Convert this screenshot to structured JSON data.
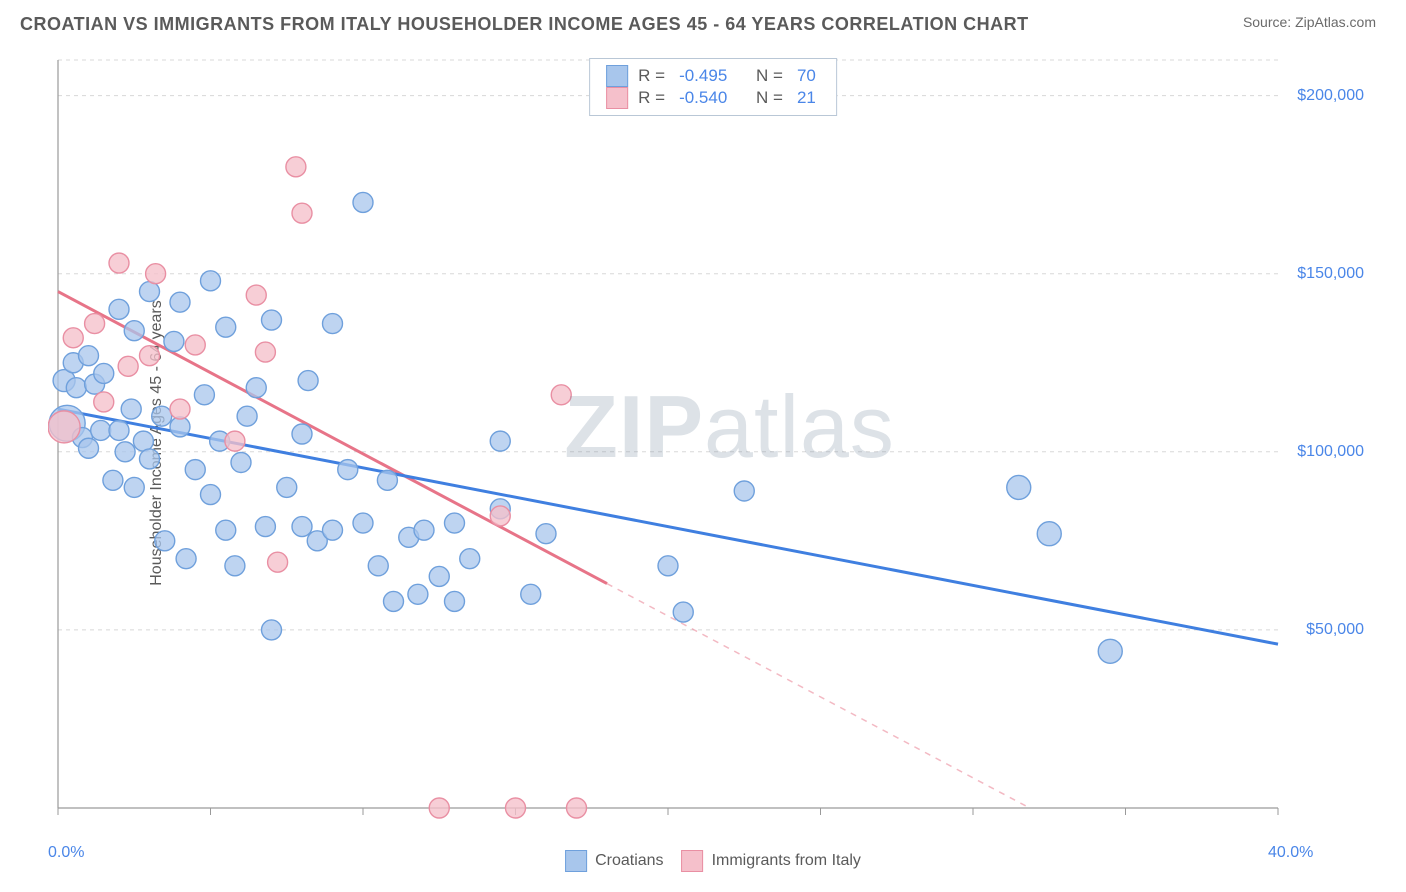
{
  "title": "CROATIAN VS IMMIGRANTS FROM ITALY HOUSEHOLDER INCOME AGES 45 - 64 YEARS CORRELATION CHART",
  "source": "Source: ZipAtlas.com",
  "watermark_bold": "ZIP",
  "watermark_light": "atlas",
  "ylabel": "Householder Income Ages 45 - 64 years",
  "chart": {
    "type": "scatter",
    "background_color": "#ffffff",
    "grid_color": "#d8d8d8",
    "grid_dash": "4,4",
    "axis_color": "#9a9a9a",
    "xlim": [
      0,
      40
    ],
    "ylim": [
      0,
      210000
    ],
    "x_ticks_minor": [
      0,
      5,
      10,
      15,
      20,
      25,
      30,
      35,
      40
    ],
    "x_tick_labels": [
      {
        "v": 0,
        "label": "0.0%"
      },
      {
        "v": 40,
        "label": "40.0%"
      }
    ],
    "y_gridlines": [
      50000,
      100000,
      150000,
      200000,
      210000
    ],
    "y_tick_labels": [
      {
        "v": 50000,
        "label": "$50,000"
      },
      {
        "v": 100000,
        "label": "$100,000"
      },
      {
        "v": 150000,
        "label": "$150,000"
      },
      {
        "v": 200000,
        "label": "$200,000"
      }
    ],
    "plot_top_pad": 12
  },
  "series": {
    "croatians": {
      "label": "Croatians",
      "fill_color": "#a8c6ec",
      "stroke_color": "#6fa0dc",
      "line_color": "#3f7fe0",
      "marker_radius": 10,
      "marker_opacity": 0.75,
      "regression": {
        "x1": 0,
        "y1": 112000,
        "x2": 40,
        "y2": 46000,
        "dash_after_x": 40
      },
      "points": [
        {
          "x": 0.2,
          "y": 120000,
          "r": 11
        },
        {
          "x": 0.3,
          "y": 108000,
          "r": 18
        },
        {
          "x": 0.5,
          "y": 125000
        },
        {
          "x": 0.6,
          "y": 118000
        },
        {
          "x": 0.8,
          "y": 104000
        },
        {
          "x": 1.0,
          "y": 127000
        },
        {
          "x": 1.0,
          "y": 101000
        },
        {
          "x": 1.2,
          "y": 119000
        },
        {
          "x": 1.4,
          "y": 106000
        },
        {
          "x": 1.5,
          "y": 122000
        },
        {
          "x": 1.8,
          "y": 92000
        },
        {
          "x": 2.0,
          "y": 140000
        },
        {
          "x": 2.0,
          "y": 106000
        },
        {
          "x": 2.2,
          "y": 100000
        },
        {
          "x": 2.4,
          "y": 112000
        },
        {
          "x": 2.5,
          "y": 134000
        },
        {
          "x": 2.5,
          "y": 90000
        },
        {
          "x": 2.8,
          "y": 103000
        },
        {
          "x": 3.0,
          "y": 145000
        },
        {
          "x": 3.0,
          "y": 98000
        },
        {
          "x": 3.4,
          "y": 110000
        },
        {
          "x": 3.5,
          "y": 75000
        },
        {
          "x": 3.8,
          "y": 131000
        },
        {
          "x": 4.0,
          "y": 142000
        },
        {
          "x": 4.0,
          "y": 107000
        },
        {
          "x": 4.2,
          "y": 70000
        },
        {
          "x": 4.5,
          "y": 95000
        },
        {
          "x": 4.8,
          "y": 116000
        },
        {
          "x": 5.0,
          "y": 148000
        },
        {
          "x": 5.0,
          "y": 88000
        },
        {
          "x": 5.3,
          "y": 103000
        },
        {
          "x": 5.5,
          "y": 78000
        },
        {
          "x": 5.5,
          "y": 135000
        },
        {
          "x": 5.8,
          "y": 68000
        },
        {
          "x": 6.0,
          "y": 97000
        },
        {
          "x": 6.2,
          "y": 110000
        },
        {
          "x": 6.5,
          "y": 118000
        },
        {
          "x": 6.8,
          "y": 79000
        },
        {
          "x": 7.0,
          "y": 137000
        },
        {
          "x": 7.0,
          "y": 50000
        },
        {
          "x": 7.5,
          "y": 90000
        },
        {
          "x": 8.0,
          "y": 79000
        },
        {
          "x": 8.0,
          "y": 105000
        },
        {
          "x": 8.2,
          "y": 120000
        },
        {
          "x": 8.5,
          "y": 75000
        },
        {
          "x": 9.0,
          "y": 78000
        },
        {
          "x": 9.0,
          "y": 136000
        },
        {
          "x": 9.5,
          "y": 95000
        },
        {
          "x": 10.0,
          "y": 170000
        },
        {
          "x": 10.0,
          "y": 80000
        },
        {
          "x": 10.5,
          "y": 68000
        },
        {
          "x": 10.8,
          "y": 92000
        },
        {
          "x": 11.0,
          "y": 58000
        },
        {
          "x": 11.5,
          "y": 76000
        },
        {
          "x": 11.8,
          "y": 60000
        },
        {
          "x": 12.0,
          "y": 78000
        },
        {
          "x": 12.5,
          "y": 65000
        },
        {
          "x": 13.0,
          "y": 80000
        },
        {
          "x": 13.0,
          "y": 58000
        },
        {
          "x": 13.5,
          "y": 70000
        },
        {
          "x": 14.5,
          "y": 103000
        },
        {
          "x": 14.5,
          "y": 84000
        },
        {
          "x": 15.5,
          "y": 60000
        },
        {
          "x": 16.0,
          "y": 77000
        },
        {
          "x": 20.0,
          "y": 68000
        },
        {
          "x": 20.5,
          "y": 55000
        },
        {
          "x": 22.5,
          "y": 89000
        },
        {
          "x": 31.5,
          "y": 90000,
          "r": 12
        },
        {
          "x": 32.5,
          "y": 77000,
          "r": 12
        },
        {
          "x": 34.5,
          "y": 44000,
          "r": 12
        }
      ]
    },
    "italy": {
      "label": "Immigrants from Italy",
      "fill_color": "#f5c0cb",
      "stroke_color": "#e98fa3",
      "line_color": "#e77488",
      "marker_radius": 10,
      "marker_opacity": 0.78,
      "regression": {
        "x1": 0,
        "y1": 145000,
        "x2": 18,
        "y2": 63000,
        "dash_after_x": 18,
        "x3": 40,
        "y3": -37000
      },
      "points": [
        {
          "x": 0.2,
          "y": 107000,
          "r": 16
        },
        {
          "x": 0.5,
          "y": 132000
        },
        {
          "x": 1.2,
          "y": 136000
        },
        {
          "x": 1.5,
          "y": 114000
        },
        {
          "x": 2.0,
          "y": 153000
        },
        {
          "x": 2.3,
          "y": 124000
        },
        {
          "x": 3.0,
          "y": 127000
        },
        {
          "x": 3.2,
          "y": 150000
        },
        {
          "x": 4.0,
          "y": 112000
        },
        {
          "x": 4.5,
          "y": 130000
        },
        {
          "x": 5.8,
          "y": 103000
        },
        {
          "x": 6.5,
          "y": 144000
        },
        {
          "x": 6.8,
          "y": 128000
        },
        {
          "x": 7.2,
          "y": 69000
        },
        {
          "x": 7.8,
          "y": 180000
        },
        {
          "x": 8.0,
          "y": 167000
        },
        {
          "x": 12.5,
          "y": 0
        },
        {
          "x": 14.5,
          "y": 82000
        },
        {
          "x": 15.0,
          "y": 0
        },
        {
          "x": 16.5,
          "y": 116000
        },
        {
          "x": 17.0,
          "y": 0
        }
      ]
    }
  },
  "stats": {
    "rows": [
      {
        "color_key": "croatians",
        "R": "-0.495",
        "N": "70"
      },
      {
        "color_key": "italy",
        "R": "-0.540",
        "N": "21"
      }
    ],
    "R_label": "R =",
    "N_label": "N ="
  }
}
